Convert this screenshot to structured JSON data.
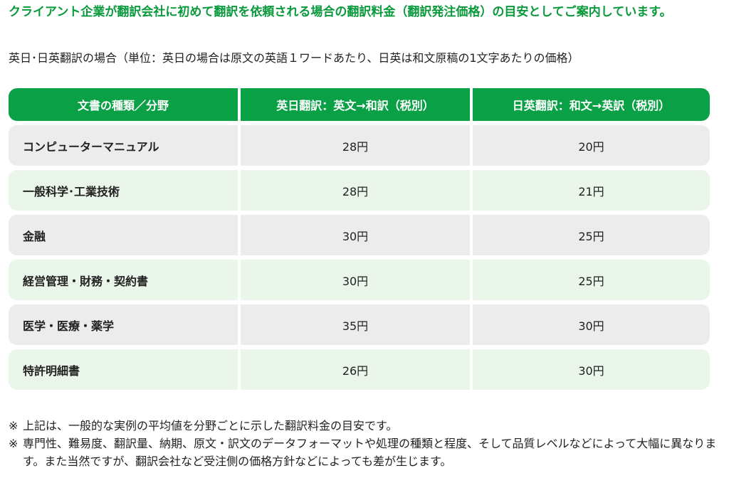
{
  "heading": "クライアント企業が翻訳会社に初めて翻訳を依頼される場合の翻訳料金（翻訳発注価格）の目安としてご案内しています。",
  "subheading": "英日･日英翻訳の場合（単位：英日の場合は原文の英語１ワードあたり、日英は和文原稿の1文字あたりの価格）",
  "table": {
    "headers": [
      "文書の種類／分野",
      "英日翻訳：英文→和訳（税別）",
      "日英翻訳：和文→英訳（税別）"
    ],
    "rows": [
      {
        "field": "コンピューターマニュアル",
        "en_ja": "28円",
        "ja_en": "20円"
      },
      {
        "field": "一般科学･工業技術",
        "en_ja": "28円",
        "ja_en": "21円"
      },
      {
        "field": "金融",
        "en_ja": "30円",
        "ja_en": "25円"
      },
      {
        "field": "経営管理・財務・契約書",
        "en_ja": "30円",
        "ja_en": "25円"
      },
      {
        "field": "医学・医療・薬学",
        "en_ja": "35円",
        "ja_en": "30円"
      },
      {
        "field": "特許明細書",
        "en_ja": "26円",
        "ja_en": "30円"
      }
    ]
  },
  "notes": {
    "mark": "※",
    "items": [
      "上記は、一般的な実例の平均値を分野ごとに示した翻訳料金の目安です。",
      "専門性、難易度、翻訳量、納期、原文・訳文のデータフォーマットや処理の種類と程度、そして品質レベルなどによって大幅に異なります。また当然ですが、翻訳会社など受注側の価格方針などによっても差が生じます。"
    ]
  },
  "colors": {
    "heading_green": "#0a9a3c",
    "header_bg": "#0aa046",
    "row_gray": "#ececec",
    "row_green": "#eaf6ea"
  }
}
